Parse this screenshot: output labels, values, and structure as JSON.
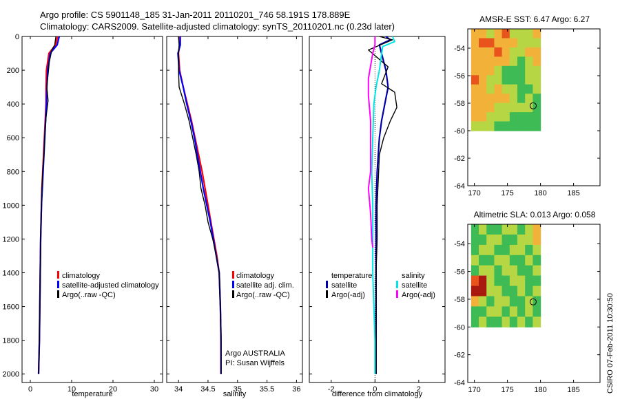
{
  "header": {
    "line1": "Argo profile: CS 5901148_185 31-Jan-2011 20110201_746 58.191S 178.889E",
    "line2": "Climatology: CARS2009. Satellite-adjusted climatology: synTS_20110201.nc (0.23d later)"
  },
  "side_stamp": "CSIRO 07-Feb-2011 10:30:50",
  "colors": {
    "red": "#ff0000",
    "blue": "#0000ff",
    "navy": "#0000aa",
    "black": "#000000",
    "cyan": "#00e5e5",
    "magenta": "#ff00ff"
  },
  "chart_data": [
    {
      "type": "line",
      "name": "temperature-panel",
      "xlabel": "temperature",
      "xlim": [
        -2,
        32
      ],
      "ylim": [
        2050,
        0
      ],
      "xticks": [
        0,
        10,
        20,
        30
      ],
      "yticks": [
        0,
        200,
        400,
        600,
        800,
        1000,
        1200,
        1400,
        1600,
        1800,
        2000
      ],
      "series": [
        {
          "name": "climatology",
          "color": "#ff0000",
          "width": 2.2,
          "x": [
            6.6,
            6.1,
            4.5,
            3.9,
            3.8,
            3.8,
            3.6,
            3.4,
            3.2,
            3.0,
            2.8,
            2.7,
            2.5,
            2.4,
            2.3,
            2.2,
            2.1,
            2.0
          ],
          "y": [
            0,
            50,
            100,
            200,
            300,
            400,
            500,
            600,
            700,
            800,
            900,
            1000,
            1200,
            1400,
            1600,
            1800,
            1900,
            2000
          ]
        },
        {
          "name": "satellite-adjusted climatology",
          "color": "#0000ff",
          "width": 2.2,
          "x": [
            7.0,
            6.5,
            4.8,
            4.2,
            4.0,
            3.9,
            3.7,
            3.5,
            3.3,
            3.1,
            2.9,
            2.7,
            2.5,
            2.4,
            2.3,
            2.2,
            2.1,
            2.0
          ],
          "y": [
            0,
            50,
            100,
            200,
            300,
            400,
            500,
            600,
            700,
            800,
            900,
            1000,
            1200,
            1400,
            1600,
            1800,
            1900,
            2000
          ]
        },
        {
          "name": "Argo(..raw -QC)",
          "color": "#000000",
          "width": 1.4,
          "x": [
            6.2,
            5.9,
            5.2,
            4.6,
            4.0,
            4.3,
            3.8,
            3.5,
            3.3,
            3.0,
            2.8,
            2.7,
            2.5,
            2.4,
            2.3,
            2.2,
            2.1,
            2.0
          ],
          "y": [
            0,
            50,
            80,
            150,
            300,
            380,
            480,
            600,
            700,
            800,
            900,
            1000,
            1200,
            1400,
            1600,
            1800,
            1900,
            2000
          ]
        }
      ],
      "legend": [
        "climatology",
        "satellite-adjusted climatology",
        "Argo(..raw -QC)"
      ]
    },
    {
      "type": "line",
      "name": "salinity-panel",
      "xlabel": "salinity",
      "xlim": [
        33.8,
        36.1
      ],
      "ylim": [
        2050,
        0
      ],
      "xticks": [
        34,
        34.5,
        35,
        35.5,
        36
      ],
      "series": [
        {
          "name": "climatology",
          "color": "#ff0000",
          "width": 2.2,
          "x": [
            34.02,
            34.02,
            34.0,
            34.02,
            34.08,
            34.15,
            34.22,
            34.28,
            34.34,
            34.4,
            34.45,
            34.5,
            34.55,
            34.6,
            34.65,
            34.69,
            34.71,
            34.72,
            34.72
          ],
          "y": [
            0,
            50,
            100,
            200,
            300,
            400,
            500,
            600,
            700,
            800,
            900,
            1000,
            1100,
            1200,
            1300,
            1400,
            1600,
            1800,
            2000
          ]
        },
        {
          "name": "satellite adj. clim.",
          "color": "#0000ff",
          "width": 2.2,
          "x": [
            34.03,
            34.03,
            33.99,
            34.01,
            34.08,
            34.14,
            34.21,
            34.27,
            34.32,
            34.37,
            34.42,
            34.48,
            34.54,
            34.59,
            34.64,
            34.69,
            34.71,
            34.72,
            34.72
          ],
          "y": [
            0,
            50,
            100,
            200,
            300,
            400,
            500,
            600,
            700,
            800,
            900,
            1000,
            1100,
            1200,
            1300,
            1400,
            1600,
            1800,
            2000
          ]
        },
        {
          "name": "Argo(..raw -QC)",
          "color": "#000000",
          "width": 1.4,
          "x": [
            34.0,
            34.01,
            34.0,
            34.0,
            34.01,
            34.1,
            34.18,
            34.24,
            34.3,
            34.35,
            34.38,
            34.45,
            34.5,
            34.58,
            34.64,
            34.69,
            34.71,
            34.72,
            34.72
          ],
          "y": [
            0,
            50,
            100,
            200,
            300,
            400,
            500,
            600,
            700,
            800,
            900,
            1000,
            1100,
            1200,
            1300,
            1400,
            1600,
            1800,
            2000
          ]
        }
      ],
      "legend": [
        "climatology",
        "satellite adj. clim.",
        "Argo(..raw -QC)"
      ],
      "annotation": [
        "Argo AUSTRALIA",
        "PI: Susan Wijffels"
      ]
    },
    {
      "type": "line",
      "name": "difference-panel",
      "xlabel": "difference from climatology",
      "xlim": [
        -3,
        3.2
      ],
      "ylim": [
        2050,
        0
      ],
      "xticks": [
        -2,
        0,
        2
      ],
      "series": [
        {
          "name": "temperature satellite",
          "color": "#0000aa",
          "width": 2.2,
          "x": [
            0.5,
            0.7,
            0.2,
            0.5,
            0.6,
            0.45,
            0.3,
            0.2,
            0.15,
            0.1,
            0.05,
            0.05,
            0.05,
            0.05,
            0.05,
            0.05
          ],
          "y": [
            0,
            20,
            50,
            200,
            300,
            400,
            500,
            600,
            700,
            800,
            1000,
            1200,
            1400,
            1600,
            1800,
            2000
          ]
        },
        {
          "name": "temperature Argo(-adj)",
          "color": "#000000",
          "width": 1.4,
          "x": [
            0.2,
            0.8,
            -0.3,
            0.6,
            0.3,
            0.9,
            1.0,
            0.7,
            0.4,
            0.2,
            0.1,
            0.1,
            0.05,
            0.05,
            0.05
          ],
          "y": [
            0,
            20,
            80,
            180,
            280,
            330,
            420,
            500,
            600,
            700,
            1000,
            1200,
            1400,
            1600,
            2000
          ]
        },
        {
          "name": "salinity satellite",
          "color": "#00e5e5",
          "width": 2.0,
          "x": [
            0.8,
            0.9,
            0.35,
            0.2,
            0.05,
            -0.05,
            -0.1,
            -0.15,
            -0.1,
            -0.1,
            -0.1,
            -0.05,
            0.0,
            0.0
          ],
          "y": [
            0,
            30,
            60,
            200,
            300,
            400,
            600,
            800,
            1000,
            1200,
            1400,
            1600,
            1800,
            2000
          ]
        },
        {
          "name": "salinity Argo(-adj)",
          "color": "#ff00ff",
          "width": 2.0,
          "x": [
            0.0,
            0.0,
            -0.1,
            -0.3,
            -0.3,
            -0.2,
            -0.2,
            -0.2,
            -0.3,
            -0.2,
            -0.15,
            -0.1
          ],
          "y": [
            0,
            50,
            100,
            250,
            350,
            500,
            700,
            800,
            900,
            1050,
            1200,
            1250
          ]
        }
      ],
      "legend_groups": [
        {
          "title": "temperature",
          "items": [
            "satellite",
            "Argo(-adj)"
          ],
          "colors": [
            "#0000aa",
            "#000000"
          ]
        },
        {
          "title": "salinity",
          "items": [
            "satellite",
            "Argo(-adj)"
          ],
          "colors": [
            "#00e5e5",
            "#ff00ff"
          ]
        }
      ]
    },
    {
      "type": "heatmap",
      "name": "sst-map",
      "title": "AMSR-E SST: 6.47 Argo: 6.27",
      "xlim": [
        169,
        189
      ],
      "ylim": [
        -64,
        -52.6
      ],
      "xticks": [
        170,
        175,
        180,
        185
      ],
      "yticks": [
        -54,
        -56,
        -58,
        -60,
        -62,
        -64
      ],
      "data_extent": {
        "lon": [
          169.5,
          180
        ],
        "lat": [
          -60,
          -52.6
        ]
      },
      "argo_marker": {
        "lon": 178.889,
        "lat": -58.191
      }
    },
    {
      "type": "heatmap",
      "name": "sla-map",
      "title": "Altimetric SLA: 0.013 Argo: 0.058",
      "xlim": [
        169,
        189
      ],
      "ylim": [
        -64,
        -52.6
      ],
      "xticks": [
        170,
        175,
        180,
        185
      ],
      "yticks": [
        -54,
        -56,
        -58,
        -60,
        -62,
        -64
      ],
      "data_extent": {
        "lon": [
          169.5,
          180
        ],
        "lat": [
          -60,
          -52.6
        ]
      },
      "argo_marker": {
        "lon": 178.889,
        "lat": -58.191
      }
    }
  ]
}
